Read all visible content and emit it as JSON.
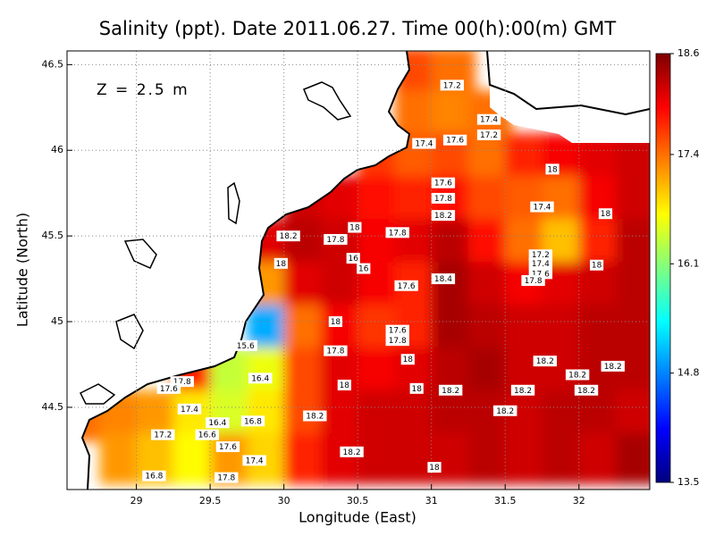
{
  "chart_data": {
    "type": "heatmap",
    "title": "Salinity (ppt). Date 2011.06.27. Time 00(h):00(m) GMT",
    "annotation": "Z = 2.5 m",
    "x_label": "Longitude (East)",
    "y_label": "Latitude (North)",
    "xlim": [
      28.53,
      32.48
    ],
    "ylim": [
      44.02,
      46.58
    ],
    "xticks": [
      29,
      29.5,
      30,
      30.5,
      31,
      31.5,
      32
    ],
    "yticks": [
      44.5,
      45,
      45.5,
      46,
      46.5
    ],
    "grid": true,
    "colormap": [
      "#00007f",
      "#0000ff",
      "#007fff",
      "#00ffff",
      "#7fff7f",
      "#ffff00",
      "#ff7f00",
      "#ff0000",
      "#7f0000"
    ],
    "clim": [
      13.5,
      18.6
    ],
    "cticks": [
      13.5,
      14.8,
      16.1,
      17.4,
      18.6
    ],
    "lons": [
      28.65,
      28.9,
      29.15,
      29.4,
      29.65,
      29.9,
      30.15,
      30.4,
      30.65,
      30.9,
      31.15,
      31.4,
      31.65,
      31.9,
      32.15,
      32.4
    ],
    "lats": [
      46.45,
      46.2,
      45.95,
      45.7,
      45.45,
      45.2,
      44.95,
      44.7,
      44.45,
      44.2
    ],
    "values": [
      [
        null,
        null,
        null,
        null,
        null,
        null,
        null,
        null,
        null,
        17.6,
        17.4,
        null,
        null,
        null,
        null,
        null
      ],
      [
        null,
        null,
        null,
        null,
        null,
        null,
        null,
        null,
        null,
        17.4,
        17.3,
        17.4,
        null,
        null,
        null,
        null
      ],
      [
        null,
        null,
        null,
        null,
        null,
        null,
        null,
        null,
        17.7,
        17.5,
        17.6,
        17.4,
        17.8,
        18.0,
        18.1,
        18.2
      ],
      [
        null,
        null,
        null,
        null,
        null,
        null,
        18.2,
        18.1,
        17.9,
        17.8,
        17.9,
        17.6,
        17.5,
        17.4,
        18.0,
        18.2
      ],
      [
        null,
        null,
        null,
        null,
        null,
        18.1,
        18.3,
        18.2,
        18.0,
        18.1,
        18.3,
        17.9,
        17.4,
        17.0,
        17.8,
        18.3
      ],
      [
        null,
        null,
        null,
        null,
        null,
        17.2,
        18.1,
        18.2,
        18.0,
        17.8,
        18.4,
        18.2,
        18.0,
        18.1,
        18.2,
        18.3
      ],
      [
        null,
        null,
        null,
        null,
        null,
        15.0,
        17.4,
        18.0,
        17.7,
        17.8,
        18.4,
        18.3,
        18.2,
        18.2,
        18.3,
        18.3
      ],
      [
        null,
        null,
        null,
        17.8,
        16.4,
        16.6,
        17.6,
        18.1,
        18.0,
        18.1,
        18.3,
        18.4,
        18.2,
        18.2,
        18.3,
        18.3
      ],
      [
        17.4,
        17.3,
        17.2,
        16.8,
        16.5,
        16.8,
        17.6,
        18.1,
        18.2,
        18.2,
        18.3,
        18.3,
        18.2,
        18.3,
        18.3,
        18.2
      ],
      [
        null,
        17.2,
        17.0,
        16.7,
        17.2,
        16.9,
        17.8,
        18.1,
        18.2,
        18.2,
        18.2,
        18.3,
        18.2,
        18.3,
        18.2,
        18.4
      ]
    ],
    "contour_labels": [
      {
        "lon": 31.14,
        "lat": 46.38,
        "value": 17.2
      },
      {
        "lon": 31.39,
        "lat": 46.18,
        "value": 17.4
      },
      {
        "lon": 31.39,
        "lat": 46.09,
        "value": 17.2
      },
      {
        "lon": 30.95,
        "lat": 46.04,
        "value": 17.4
      },
      {
        "lon": 31.16,
        "lat": 46.06,
        "value": 17.6
      },
      {
        "lon": 31.82,
        "lat": 45.89,
        "value": 18
      },
      {
        "lon": 31.08,
        "lat": 45.81,
        "value": 17.6
      },
      {
        "lon": 31.08,
        "lat": 45.72,
        "value": 17.8
      },
      {
        "lon": 31.08,
        "lat": 45.62,
        "value": 18.2
      },
      {
        "lon": 31.75,
        "lat": 45.67,
        "value": 17.4
      },
      {
        "lon": 32.18,
        "lat": 45.63,
        "value": 18
      },
      {
        "lon": 30.03,
        "lat": 45.5,
        "value": 18.2
      },
      {
        "lon": 30.35,
        "lat": 45.48,
        "value": 17.8
      },
      {
        "lon": 30.48,
        "lat": 45.55,
        "value": 18
      },
      {
        "lon": 30.77,
        "lat": 45.52,
        "value": 17.8
      },
      {
        "lon": 30.47,
        "lat": 45.37,
        "value": 16
      },
      {
        "lon": 30.54,
        "lat": 45.31,
        "value": 16
      },
      {
        "lon": 29.98,
        "lat": 45.34,
        "value": 18
      },
      {
        "lon": 31.74,
        "lat": 45.39,
        "value": 17.2
      },
      {
        "lon": 31.74,
        "lat": 45.34,
        "value": 17.4
      },
      {
        "lon": 31.74,
        "lat": 45.28,
        "value": 17.6
      },
      {
        "lon": 31.69,
        "lat": 45.24,
        "value": 17.8
      },
      {
        "lon": 32.12,
        "lat": 45.33,
        "value": 18
      },
      {
        "lon": 30.83,
        "lat": 45.21,
        "value": 17.6
      },
      {
        "lon": 31.08,
        "lat": 45.25,
        "value": 18.4
      },
      {
        "lon": 30.35,
        "lat": 45.0,
        "value": 18
      },
      {
        "lon": 30.77,
        "lat": 44.95,
        "value": 17.6
      },
      {
        "lon": 30.77,
        "lat": 44.89,
        "value": 17.8
      },
      {
        "lon": 30.35,
        "lat": 44.83,
        "value": 17.8
      },
      {
        "lon": 30.84,
        "lat": 44.78,
        "value": 18
      },
      {
        "lon": 29.74,
        "lat": 44.86,
        "value": 15.6
      },
      {
        "lon": 29.84,
        "lat": 44.67,
        "value": 16.4
      },
      {
        "lon": 29.31,
        "lat": 44.65,
        "value": 17.8
      },
      {
        "lon": 29.22,
        "lat": 44.61,
        "value": 17.6
      },
      {
        "lon": 30.41,
        "lat": 44.63,
        "value": 18
      },
      {
        "lon": 30.9,
        "lat": 44.61,
        "value": 18
      },
      {
        "lon": 31.13,
        "lat": 44.6,
        "value": 18.2
      },
      {
        "lon": 31.62,
        "lat": 44.6,
        "value": 18.2
      },
      {
        "lon": 31.77,
        "lat": 44.77,
        "value": 18.2
      },
      {
        "lon": 31.99,
        "lat": 44.69,
        "value": 18.2
      },
      {
        "lon": 32.05,
        "lat": 44.6,
        "value": 18.2
      },
      {
        "lon": 32.23,
        "lat": 44.74,
        "value": 18.2
      },
      {
        "lon": 29.36,
        "lat": 44.49,
        "value": 17.4
      },
      {
        "lon": 30.21,
        "lat": 44.45,
        "value": 18.2
      },
      {
        "lon": 31.5,
        "lat": 44.48,
        "value": 18.2
      },
      {
        "lon": 29.55,
        "lat": 44.41,
        "value": 16.4
      },
      {
        "lon": 29.48,
        "lat": 44.34,
        "value": 16.6
      },
      {
        "lon": 29.79,
        "lat": 44.42,
        "value": 16.8
      },
      {
        "lon": 29.18,
        "lat": 44.34,
        "value": 17.2
      },
      {
        "lon": 29.62,
        "lat": 44.27,
        "value": 17.6
      },
      {
        "lon": 30.46,
        "lat": 44.24,
        "value": 18.2
      },
      {
        "lon": 29.8,
        "lat": 44.19,
        "value": 17.4
      },
      {
        "lon": 31.02,
        "lat": 44.15,
        "value": 18
      },
      {
        "lon": 29.61,
        "lat": 44.09,
        "value": 17.8
      },
      {
        "lon": 29.12,
        "lat": 44.1,
        "value": 16.8
      }
    ]
  }
}
